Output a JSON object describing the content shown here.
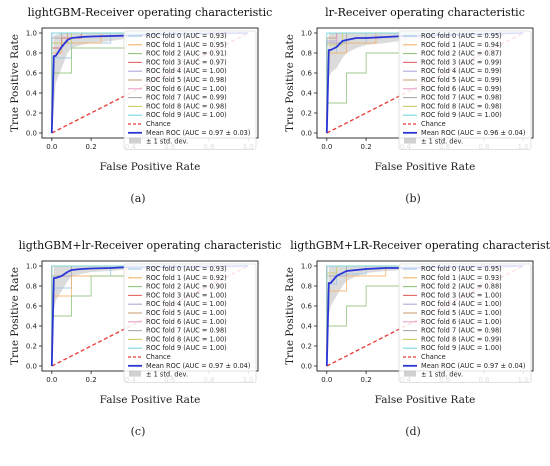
{
  "colors": {
    "folds": [
      "#9fc5e8",
      "#f6b26b",
      "#93c47d",
      "#e06666",
      "#b4a7d6",
      "#c9a27a",
      "#e6a0c4",
      "#aaaaaa",
      "#cccc66",
      "#76d7e0"
    ],
    "chance": "#e53935",
    "mean": "#2b35d6",
    "band": "#bdbdbd"
  },
  "chart_data": [
    {
      "type": "line",
      "title": "lightGBM-Receiver operating characteristic",
      "xlabel": "False Positive Rate",
      "ylabel": "True Positive Rate",
      "caption": "(a)",
      "xlim": [
        -0.05,
        1.05
      ],
      "ylim": [
        -0.05,
        1.05
      ],
      "xticks": [
        "0.0",
        "0.2",
        "0.4",
        "0.6",
        "0.8",
        "1.0"
      ],
      "yticks": [
        "0.0",
        "0.2",
        "0.4",
        "0.6",
        "0.8",
        "1.0"
      ],
      "legend_position": "center-right",
      "series": [
        {
          "name": "ROC fold 0 (AUC = 0.93)",
          "x": [
            0,
            0,
            0.1,
            0.1,
            0.3,
            0.3,
            1
          ],
          "y": [
            0,
            0.75,
            0.75,
            0.9,
            0.9,
            1,
            1
          ]
        },
        {
          "name": "ROC fold 1 (AUC = 0.95)",
          "x": [
            0,
            0,
            0.05,
            0.05,
            0.25,
            0.25,
            1
          ],
          "y": [
            0,
            0.8,
            0.8,
            0.9,
            0.9,
            1,
            1
          ]
        },
        {
          "name": "ROC fold 2 (AUC = 0.91)",
          "x": [
            0,
            0,
            0.1,
            0.1,
            0.38,
            0.38,
            1
          ],
          "y": [
            0,
            0.6,
            0.6,
            0.85,
            0.85,
            1,
            1
          ]
        },
        {
          "name": "ROC fold 3 (AUC = 0.97)",
          "x": [
            0,
            0,
            0.05,
            0.05,
            0.15,
            0.15,
            1
          ],
          "y": [
            0,
            0.85,
            0.85,
            0.95,
            0.95,
            1,
            1
          ]
        },
        {
          "name": "ROC fold 4 (AUC = 1.00)",
          "x": [
            0,
            0,
            1
          ],
          "y": [
            0,
            1,
            1
          ]
        },
        {
          "name": "ROC fold 5 (AUC = 0.98)",
          "x": [
            0,
            0,
            0.08,
            0.08,
            1
          ],
          "y": [
            0,
            0.9,
            0.9,
            1,
            1
          ]
        },
        {
          "name": "ROC fold 6 (AUC = 1.00)",
          "x": [
            0,
            0,
            1
          ],
          "y": [
            0,
            1,
            1
          ]
        },
        {
          "name": "ROC fold 7 (AUC = 0.99)",
          "x": [
            0,
            0,
            0.05,
            0.05,
            1
          ],
          "y": [
            0,
            0.95,
            0.95,
            1,
            1
          ]
        },
        {
          "name": "ROC fold 8 (AUC = 0.98)",
          "x": [
            0,
            0,
            0.1,
            0.1,
            1
          ],
          "y": [
            0,
            0.9,
            0.9,
            1,
            1
          ]
        },
        {
          "name": "ROC fold 9 (AUC = 1.00)",
          "x": [
            0,
            0,
            1
          ],
          "y": [
            0,
            1,
            1
          ]
        }
      ],
      "chance": {
        "name": "Chance",
        "x": [
          0,
          1
        ],
        "y": [
          0,
          1
        ]
      },
      "mean": {
        "name": "Mean ROC (AUC = 0.97 ± 0.03)",
        "x": [
          0,
          0.01,
          0.02,
          0.05,
          0.08,
          0.1,
          0.15,
          0.2,
          0.3,
          0.4,
          0.6,
          1.0
        ],
        "y": [
          0,
          0.77,
          0.77,
          0.86,
          0.93,
          0.95,
          0.96,
          0.965,
          0.97,
          0.975,
          0.99,
          1.0
        ]
      },
      "band": {
        "name": "± 1 std. dev.",
        "x": [
          0,
          0.01,
          0.02,
          0.05,
          0.08,
          0.1,
          0.15,
          0.2,
          0.3,
          0.4,
          0.6,
          1.0
        ],
        "upper": [
          0,
          0.98,
          0.98,
          1,
          1,
          1,
          1,
          1,
          1,
          1,
          1,
          1
        ],
        "lower": [
          0,
          0.25,
          0.5,
          0.65,
          0.8,
          0.85,
          0.88,
          0.9,
          0.92,
          0.95,
          0.98,
          1
        ]
      }
    },
    {
      "type": "line",
      "title": "lr-Receiver operating characteristic",
      "xlabel": "False Positive Rate",
      "ylabel": "True Positive Rate",
      "caption": "(b)",
      "xlim": [
        -0.05,
        1.05
      ],
      "ylim": [
        -0.05,
        1.05
      ],
      "xticks": [
        "0.0",
        "0.2",
        "0.4",
        "0.6",
        "0.8",
        "1.0"
      ],
      "yticks": [
        "0.0",
        "0.2",
        "0.4",
        "0.6",
        "0.8",
        "1.0"
      ],
      "legend_position": "center-right",
      "series": [
        {
          "name": "ROC fold 0 (AUC = 0.95)",
          "x": [
            0,
            0,
            0.05,
            0.05,
            0.2,
            0.2,
            1
          ],
          "y": [
            0,
            0.8,
            0.8,
            0.9,
            0.9,
            1,
            1
          ]
        },
        {
          "name": "ROC fold 1 (AUC = 0.94)",
          "x": [
            0,
            0,
            0.1,
            0.1,
            0.25,
            0.25,
            1
          ],
          "y": [
            0,
            0.8,
            0.8,
            0.9,
            0.9,
            1,
            1
          ]
        },
        {
          "name": "ROC fold 2 (AUC = 0.87)",
          "x": [
            0,
            0,
            0.1,
            0.1,
            0.2,
            0.2,
            0.4,
            0.4,
            1
          ],
          "y": [
            0,
            0.3,
            0.3,
            0.6,
            0.6,
            0.8,
            0.8,
            1,
            1
          ]
        },
        {
          "name": "ROC fold 3 (AUC = 0.99)",
          "x": [
            0,
            0,
            0.05,
            0.05,
            1
          ],
          "y": [
            0,
            0.95,
            0.95,
            1,
            1
          ]
        },
        {
          "name": "ROC fold 4 (AUC = 0.99)",
          "x": [
            0,
            0,
            0.05,
            0.05,
            1
          ],
          "y": [
            0,
            0.92,
            0.92,
            1,
            1
          ]
        },
        {
          "name": "ROC fold 5 (AUC = 0.99)",
          "x": [
            0,
            0,
            0.05,
            0.05,
            1
          ],
          "y": [
            0,
            0.95,
            0.95,
            1,
            1
          ]
        },
        {
          "name": "ROC fold 6 (AUC = 0.99)",
          "x": [
            0,
            0,
            0.05,
            0.05,
            1
          ],
          "y": [
            0,
            0.9,
            0.9,
            1,
            1
          ]
        },
        {
          "name": "ROC fold 7 (AUC = 0.98)",
          "x": [
            0,
            0,
            0.1,
            0.1,
            1
          ],
          "y": [
            0,
            0.9,
            0.9,
            1,
            1
          ]
        },
        {
          "name": "ROC fold 8 (AUC = 0.98)",
          "x": [
            0,
            0,
            0.08,
            0.08,
            1
          ],
          "y": [
            0,
            0.88,
            0.88,
            1,
            1
          ]
        },
        {
          "name": "ROC fold 9 (AUC = 1.00)",
          "x": [
            0,
            0,
            1
          ],
          "y": [
            0,
            1,
            1
          ]
        }
      ],
      "chance": {
        "name": "Chance",
        "x": [
          0,
          1
        ],
        "y": [
          0,
          1
        ]
      },
      "mean": {
        "name": "Mean ROC (AUC = 0.96 ± 0.04)",
        "x": [
          0,
          0.01,
          0.02,
          0.05,
          0.08,
          0.1,
          0.15,
          0.2,
          0.3,
          0.4,
          0.6,
          1.0
        ],
        "y": [
          0,
          0.83,
          0.83,
          0.86,
          0.92,
          0.93,
          0.95,
          0.95,
          0.96,
          0.97,
          0.98,
          1.0
        ]
      },
      "band": {
        "name": "± 1 std. dev.",
        "x": [
          0,
          0.01,
          0.02,
          0.05,
          0.08,
          0.1,
          0.15,
          0.2,
          0.3,
          0.4,
          0.6,
          1.0
        ],
        "upper": [
          0,
          1,
          1,
          1,
          1,
          1,
          1,
          1,
          1,
          1,
          1,
          1
        ],
        "lower": [
          0,
          0.55,
          0.6,
          0.65,
          0.75,
          0.8,
          0.85,
          0.88,
          0.9,
          0.93,
          0.96,
          1
        ]
      }
    },
    {
      "type": "line",
      "title": "ligthGBM+lr-Receiver operating characteristic",
      "xlabel": "False Positive Rate",
      "ylabel": "True Positive Rate",
      "caption": "(c)",
      "xlim": [
        -0.05,
        1.05
      ],
      "ylim": [
        -0.05,
        1.05
      ],
      "xticks": [
        "0.0",
        "0.2",
        "0.4",
        "0.6",
        "0.8",
        "1.0"
      ],
      "yticks": [
        "0.0",
        "0.2",
        "0.4",
        "0.6",
        "0.8",
        "1.0"
      ],
      "legend_position": "center-right",
      "series": [
        {
          "name": "ROC fold 0 (AUC = 0.93)",
          "x": [
            0,
            0,
            0.1,
            0.1,
            0.3,
            0.3,
            1
          ],
          "y": [
            0,
            0.78,
            0.78,
            0.9,
            0.9,
            1,
            1
          ]
        },
        {
          "name": "ROC fold 1 (AUC = 0.92)",
          "x": [
            0,
            0,
            0.1,
            0.1,
            0.38,
            0.38,
            1
          ],
          "y": [
            0,
            0.7,
            0.7,
            0.9,
            0.9,
            1,
            1
          ]
        },
        {
          "name": "ROC fold 2 (AUC = 0.90)",
          "x": [
            0,
            0,
            0.1,
            0.1,
            0.2,
            0.2,
            0.4,
            0.4,
            1
          ],
          "y": [
            0,
            0.5,
            0.5,
            0.7,
            0.7,
            0.9,
            0.9,
            1,
            1
          ]
        },
        {
          "name": "ROC fold 3 (AUC = 1.00)",
          "x": [
            0,
            0,
            1
          ],
          "y": [
            0,
            1,
            1
          ]
        },
        {
          "name": "ROC fold 4 (AUC = 1.00)",
          "x": [
            0,
            0,
            1
          ],
          "y": [
            0,
            1,
            1
          ]
        },
        {
          "name": "ROC fold 5 (AUC = 1.00)",
          "x": [
            0,
            0,
            1
          ],
          "y": [
            0,
            1,
            1
          ]
        },
        {
          "name": "ROC fold 6 (AUC = 1.00)",
          "x": [
            0,
            0,
            1
          ],
          "y": [
            0,
            1,
            1
          ]
        },
        {
          "name": "ROC fold 7 (AUC = 0.98)",
          "x": [
            0,
            0,
            0.1,
            0.1,
            1
          ],
          "y": [
            0,
            0.9,
            0.9,
            1,
            1
          ]
        },
        {
          "name": "ROC fold 8 (AUC = 1.00)",
          "x": [
            0,
            0,
            1
          ],
          "y": [
            0,
            1,
            1
          ]
        },
        {
          "name": "ROC fold 9 (AUC = 1.00)",
          "x": [
            0,
            0,
            1
          ],
          "y": [
            0,
            1,
            1
          ]
        }
      ],
      "chance": {
        "name": "Chance",
        "x": [
          0,
          1
        ],
        "y": [
          0,
          1
        ]
      },
      "mean": {
        "name": "Mean ROC (AUC = 0.97 ± 0.04)",
        "x": [
          0,
          0.01,
          0.02,
          0.05,
          0.08,
          0.1,
          0.15,
          0.2,
          0.3,
          0.4,
          0.6,
          1.0
        ],
        "y": [
          0,
          0.88,
          0.88,
          0.9,
          0.94,
          0.96,
          0.97,
          0.975,
          0.98,
          0.99,
          0.99,
          1.0
        ]
      },
      "band": {
        "name": "± 1 std. dev.",
        "x": [
          0,
          0.01,
          0.02,
          0.05,
          0.08,
          0.1,
          0.15,
          0.2,
          0.3,
          0.4,
          0.6,
          1.0
        ],
        "upper": [
          0,
          1,
          1,
          1,
          1,
          1,
          1,
          1,
          1,
          1,
          1,
          1
        ],
        "lower": [
          0,
          0.55,
          0.65,
          0.75,
          0.85,
          0.9,
          0.92,
          0.94,
          0.95,
          0.97,
          0.98,
          1
        ]
      }
    },
    {
      "type": "line",
      "title": "ligthGBM+LR-Receiver operating characteristic",
      "xlabel": "False Positive Rate",
      "ylabel": "True Positive Rate",
      "caption": "(d)",
      "xlim": [
        -0.05,
        1.05
      ],
      "ylim": [
        -0.05,
        1.05
      ],
      "xticks": [
        "0.0",
        "0.2",
        "0.4",
        "0.6",
        "0.8",
        "1.0"
      ],
      "yticks": [
        "0.0",
        "0.2",
        "0.4",
        "0.6",
        "0.8",
        "1.0"
      ],
      "legend_position": "center-right",
      "series": [
        {
          "name": "ROC fold 0 (AUC = 0.95)",
          "x": [
            0,
            0,
            0.05,
            0.05,
            0.2,
            0.2,
            1
          ],
          "y": [
            0,
            0.82,
            0.82,
            0.92,
            0.92,
            1,
            1
          ]
        },
        {
          "name": "ROC fold 1 (AUC = 0.93)",
          "x": [
            0,
            0,
            0.1,
            0.1,
            0.3,
            0.3,
            1
          ],
          "y": [
            0,
            0.75,
            0.75,
            0.9,
            0.9,
            1,
            1
          ]
        },
        {
          "name": "ROC fold 2 (AUC = 0.88)",
          "x": [
            0,
            0,
            0.1,
            0.1,
            0.2,
            0.2,
            0.4,
            0.4,
            1
          ],
          "y": [
            0,
            0.4,
            0.4,
            0.6,
            0.6,
            0.8,
            0.8,
            1,
            1
          ]
        },
        {
          "name": "ROC fold 3 (AUC = 1.00)",
          "x": [
            0,
            0,
            1
          ],
          "y": [
            0,
            1,
            1
          ]
        },
        {
          "name": "ROC fold 4 (AUC = 1.00)",
          "x": [
            0,
            0,
            1
          ],
          "y": [
            0,
            1,
            1
          ]
        },
        {
          "name": "ROC fold 5 (AUC = 1.00)",
          "x": [
            0,
            0,
            1
          ],
          "y": [
            0,
            1,
            1
          ]
        },
        {
          "name": "ROC fold 6 (AUC = 1.00)",
          "x": [
            0,
            0,
            1
          ],
          "y": [
            0,
            1,
            1
          ]
        },
        {
          "name": "ROC fold 7 (AUC = 0.98)",
          "x": [
            0,
            0,
            0.1,
            0.1,
            1
          ],
          "y": [
            0,
            0.9,
            0.9,
            1,
            1
          ]
        },
        {
          "name": "ROC fold 8 (AUC = 0.99)",
          "x": [
            0,
            0,
            0.05,
            0.05,
            1
          ],
          "y": [
            0,
            0.93,
            0.93,
            1,
            1
          ]
        },
        {
          "name": "ROC fold 9 (AUC = 1.00)",
          "x": [
            0,
            0,
            1
          ],
          "y": [
            0,
            1,
            1
          ]
        }
      ],
      "chance": {
        "name": "Chance",
        "x": [
          0,
          1
        ],
        "y": [
          0,
          1
        ]
      },
      "mean": {
        "name": "Mean ROC (AUC = 0.97 ± 0.04)",
        "x": [
          0,
          0.01,
          0.02,
          0.05,
          0.08,
          0.1,
          0.15,
          0.2,
          0.3,
          0.4,
          0.6,
          1.0
        ],
        "y": [
          0,
          0.83,
          0.83,
          0.9,
          0.93,
          0.95,
          0.96,
          0.97,
          0.98,
          0.98,
          0.99,
          1.0
        ]
      },
      "band": {
        "name": "± 1 std. dev.",
        "x": [
          0,
          0.01,
          0.02,
          0.05,
          0.08,
          0.1,
          0.15,
          0.2,
          0.3,
          0.4,
          0.6,
          1.0
        ],
        "upper": [
          0,
          1,
          1,
          1,
          1,
          1,
          1,
          1,
          1,
          1,
          1,
          1
        ],
        "lower": [
          0,
          0.5,
          0.6,
          0.7,
          0.8,
          0.85,
          0.9,
          0.93,
          0.95,
          0.96,
          0.98,
          1
        ]
      }
    }
  ]
}
